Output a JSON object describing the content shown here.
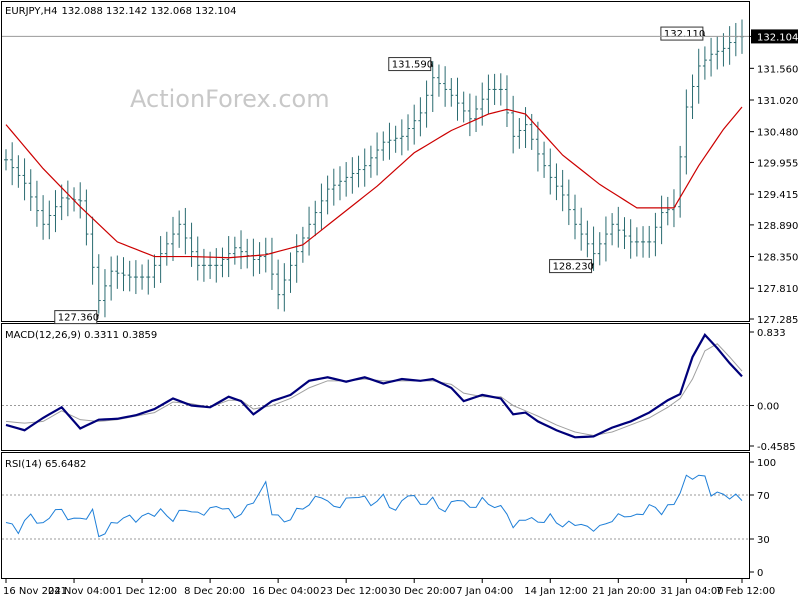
{
  "header": {
    "symbol": "EURJPY,H4",
    "ohlc": "132.088 132.142 132.068 132.104"
  },
  "watermark": "ActionForex.com",
  "colors": {
    "bars": "#2a6b70",
    "ma": "#cc0000",
    "macd": "#00007a",
    "signal": "#a0a0a0",
    "rsi": "#1e7fd8",
    "grid": "#9a9a9a",
    "price_badge_bg": "#000000"
  },
  "chart_data": [
    {
      "type": "ohlc",
      "panel": "price",
      "title": "EURJPY,H4 132.088 132.142 132.068 132.104",
      "yticks": [
        "132.104",
        "131.560",
        "131.020",
        "130.480",
        "129.955",
        "129.415",
        "128.890",
        "128.350",
        "127.810",
        "127.285"
      ],
      "ylim": [
        127.285,
        132.35
      ],
      "current_price": "132.104",
      "annotations": [
        {
          "text": "127.360",
          "index": 15
        },
        {
          "text": "131.590",
          "index": 69
        },
        {
          "text": "128.230",
          "index": 95
        },
        {
          "text": "132.110",
          "index": 113
        }
      ],
      "close_anchors": [
        [
          0,
          130.0
        ],
        [
          3,
          129.6
        ],
        [
          6,
          128.9
        ],
        [
          9,
          129.35
        ],
        [
          12,
          129.3
        ],
        [
          15,
          127.6
        ],
        [
          17,
          128.1
        ],
        [
          20,
          128.0
        ],
        [
          23,
          128.0
        ],
        [
          25,
          128.4
        ],
        [
          28,
          128.9
        ],
        [
          31,
          128.2
        ],
        [
          34,
          128.2
        ],
        [
          37,
          128.5
        ],
        [
          40,
          128.3
        ],
        [
          42,
          128.4
        ],
        [
          44,
          127.7
        ],
        [
          46,
          128.2
        ],
        [
          49,
          128.9
        ],
        [
          52,
          129.5
        ],
        [
          55,
          129.7
        ],
        [
          58,
          129.9
        ],
        [
          61,
          130.3
        ],
        [
          64,
          130.4
        ],
        [
          67,
          130.8
        ],
        [
          69,
          131.4
        ],
        [
          72,
          131.1
        ],
        [
          75,
          130.7
        ],
        [
          78,
          131.2
        ],
        [
          80,
          131.2
        ],
        [
          82,
          130.4
        ],
        [
          84,
          130.6
        ],
        [
          86,
          130.1
        ],
        [
          88,
          129.7
        ],
        [
          90,
          129.4
        ],
        [
          92,
          128.9
        ],
        [
          95,
          128.4
        ],
        [
          98,
          128.9
        ],
        [
          101,
          128.6
        ],
        [
          104,
          128.6
        ],
        [
          106,
          129.1
        ],
        [
          108,
          129.2
        ],
        [
          110,
          130.9
        ],
        [
          112,
          131.6
        ],
        [
          114,
          131.8
        ],
        [
          116,
          131.9
        ],
        [
          118,
          132.1
        ]
      ],
      "ma_anchors": [
        [
          0,
          130.6
        ],
        [
          6,
          129.85
        ],
        [
          12,
          129.2
        ],
        [
          18,
          128.6
        ],
        [
          24,
          128.35
        ],
        [
          30,
          128.35
        ],
        [
          36,
          128.33
        ],
        [
          42,
          128.38
        ],
        [
          48,
          128.55
        ],
        [
          54,
          129.05
        ],
        [
          60,
          129.55
        ],
        [
          66,
          130.12
        ],
        [
          72,
          130.5
        ],
        [
          78,
          130.78
        ],
        [
          81,
          130.86
        ],
        [
          84,
          130.78
        ],
        [
          90,
          130.08
        ],
        [
          96,
          129.58
        ],
        [
          102,
          129.18
        ],
        [
          108,
          129.18
        ],
        [
          112,
          129.9
        ],
        [
          116,
          130.52
        ],
        [
          119,
          130.9
        ]
      ]
    },
    {
      "type": "line",
      "panel": "macd",
      "title": "MACD(12,26,9) 0.3311 0.3859",
      "yticks": [
        "0.833",
        "0.00",
        "-0.4585"
      ],
      "ylim": [
        -0.4585,
        0.833
      ],
      "series": [
        {
          "name": "MACD",
          "anchors": [
            [
              0,
              -0.22
            ],
            [
              3,
              -0.28
            ],
            [
              6,
              -0.14
            ],
            [
              9,
              -0.02
            ],
            [
              12,
              -0.26
            ],
            [
              15,
              -0.16
            ],
            [
              18,
              -0.15
            ],
            [
              21,
              -0.11
            ],
            [
              24,
              -0.04
            ],
            [
              27,
              0.08
            ],
            [
              30,
              0.0
            ],
            [
              33,
              -0.02
            ],
            [
              36,
              0.1
            ],
            [
              38,
              0.05
            ],
            [
              40,
              -0.1
            ],
            [
              43,
              0.05
            ],
            [
              46,
              0.12
            ],
            [
              49,
              0.28
            ],
            [
              52,
              0.32
            ],
            [
              55,
              0.27
            ],
            [
              58,
              0.32
            ],
            [
              61,
              0.25
            ],
            [
              64,
              0.3
            ],
            [
              67,
              0.28
            ],
            [
              69,
              0.3
            ],
            [
              72,
              0.2
            ],
            [
              74,
              0.05
            ],
            [
              77,
              0.12
            ],
            [
              80,
              0.08
            ],
            [
              82,
              -0.1
            ],
            [
              84,
              -0.08
            ],
            [
              86,
              -0.18
            ],
            [
              89,
              -0.28
            ],
            [
              92,
              -0.36
            ],
            [
              95,
              -0.35
            ],
            [
              98,
              -0.25
            ],
            [
              101,
              -0.18
            ],
            [
              104,
              -0.08
            ],
            [
              107,
              0.06
            ],
            [
              109,
              0.13
            ],
            [
              111,
              0.55
            ],
            [
              113,
              0.8
            ],
            [
              115,
              0.65
            ],
            [
              117,
              0.48
            ],
            [
              119,
              0.33
            ]
          ]
        },
        {
          "name": "Signal",
          "anchors": [
            [
              0,
              -0.18
            ],
            [
              3,
              -0.2
            ],
            [
              6,
              -0.18
            ],
            [
              9,
              -0.06
            ],
            [
              12,
              -0.16
            ],
            [
              15,
              -0.18
            ],
            [
              18,
              -0.16
            ],
            [
              21,
              -0.12
            ],
            [
              24,
              -0.08
            ],
            [
              27,
              0.04
            ],
            [
              30,
              0.02
            ],
            [
              33,
              -0.02
            ],
            [
              36,
              0.06
            ],
            [
              38,
              0.06
            ],
            [
              40,
              -0.04
            ],
            [
              43,
              0.0
            ],
            [
              46,
              0.08
            ],
            [
              49,
              0.2
            ],
            [
              52,
              0.28
            ],
            [
              55,
              0.28
            ],
            [
              58,
              0.3
            ],
            [
              61,
              0.28
            ],
            [
              64,
              0.28
            ],
            [
              67,
              0.28
            ],
            [
              69,
              0.28
            ],
            [
              72,
              0.24
            ],
            [
              74,
              0.14
            ],
            [
              77,
              0.1
            ],
            [
              80,
              0.1
            ],
            [
              82,
              0.0
            ],
            [
              84,
              -0.06
            ],
            [
              86,
              -0.12
            ],
            [
              89,
              -0.22
            ],
            [
              92,
              -0.3
            ],
            [
              95,
              -0.34
            ],
            [
              98,
              -0.3
            ],
            [
              101,
              -0.22
            ],
            [
              104,
              -0.14
            ],
            [
              107,
              -0.02
            ],
            [
              109,
              0.08
            ],
            [
              111,
              0.3
            ],
            [
              113,
              0.62
            ],
            [
              115,
              0.7
            ],
            [
              117,
              0.55
            ],
            [
              119,
              0.39
            ]
          ]
        }
      ]
    },
    {
      "type": "line",
      "panel": "rsi",
      "title": "RSI(14) 65.6482",
      "yticks": [
        "100",
        "70",
        "30",
        "0"
      ],
      "ylim": [
        0,
        100
      ],
      "levels": [
        70,
        30
      ],
      "series": [
        {
          "name": "RSI",
          "anchors": [
            [
              0,
              45
            ],
            [
              2,
              38
            ],
            [
              4,
              52
            ],
            [
              6,
              42
            ],
            [
              8,
              58
            ],
            [
              10,
              50
            ],
            [
              12,
              47
            ],
            [
              14,
              55
            ],
            [
              15,
              32
            ],
            [
              17,
              42
            ],
            [
              19,
              50
            ],
            [
              21,
              48
            ],
            [
              23,
              52
            ],
            [
              25,
              55
            ],
            [
              27,
              48
            ],
            [
              29,
              58
            ],
            [
              31,
              52
            ],
            [
              33,
              57
            ],
            [
              35,
              60
            ],
            [
              37,
              50
            ],
            [
              39,
              58
            ],
            [
              41,
              72
            ],
            [
              42,
              80
            ],
            [
              43,
              55
            ],
            [
              45,
              45
            ],
            [
              47,
              55
            ],
            [
              49,
              62
            ],
            [
              51,
              70
            ],
            [
              53,
              58
            ],
            [
              55,
              65
            ],
            [
              57,
              70
            ],
            [
              59,
              62
            ],
            [
              61,
              68
            ],
            [
              63,
              55
            ],
            [
              65,
              72
            ],
            [
              67,
              62
            ],
            [
              69,
              65
            ],
            [
              71,
              55
            ],
            [
              73,
              68
            ],
            [
              75,
              58
            ],
            [
              77,
              65
            ],
            [
              79,
              60
            ],
            [
              81,
              55
            ],
            [
              82,
              40
            ],
            [
              84,
              50
            ],
            [
              86,
              45
            ],
            [
              88,
              50
            ],
            [
              90,
              42
            ],
            [
              92,
              45
            ],
            [
              94,
              40
            ],
            [
              96,
              40
            ],
            [
              98,
              48
            ],
            [
              100,
              52
            ],
            [
              102,
              50
            ],
            [
              104,
              60
            ],
            [
              106,
              55
            ],
            [
              108,
              62
            ],
            [
              110,
              85
            ],
            [
              112,
              88
            ],
            [
              113,
              85
            ],
            [
              114,
              72
            ],
            [
              116,
              70
            ],
            [
              118,
              68
            ],
            [
              119,
              66
            ]
          ]
        }
      ]
    }
  ],
  "xaxis": {
    "labels": [
      "16 Nov 2021",
      "24 Nov 04:00",
      "1 Dec 12:00",
      "8 Dec 20:00",
      "16 Dec 04:00",
      "23 Dec 12:00",
      "30 Dec 20:00",
      "7 Jan 04:00",
      "14 Jan 12:00",
      "21 Jan 20:00",
      "31 Jan 04:00",
      "7 Feb 12:00"
    ],
    "label_index": [
      0,
      11,
      22,
      33,
      44,
      55,
      66,
      77,
      88,
      99,
      110,
      119
    ]
  }
}
